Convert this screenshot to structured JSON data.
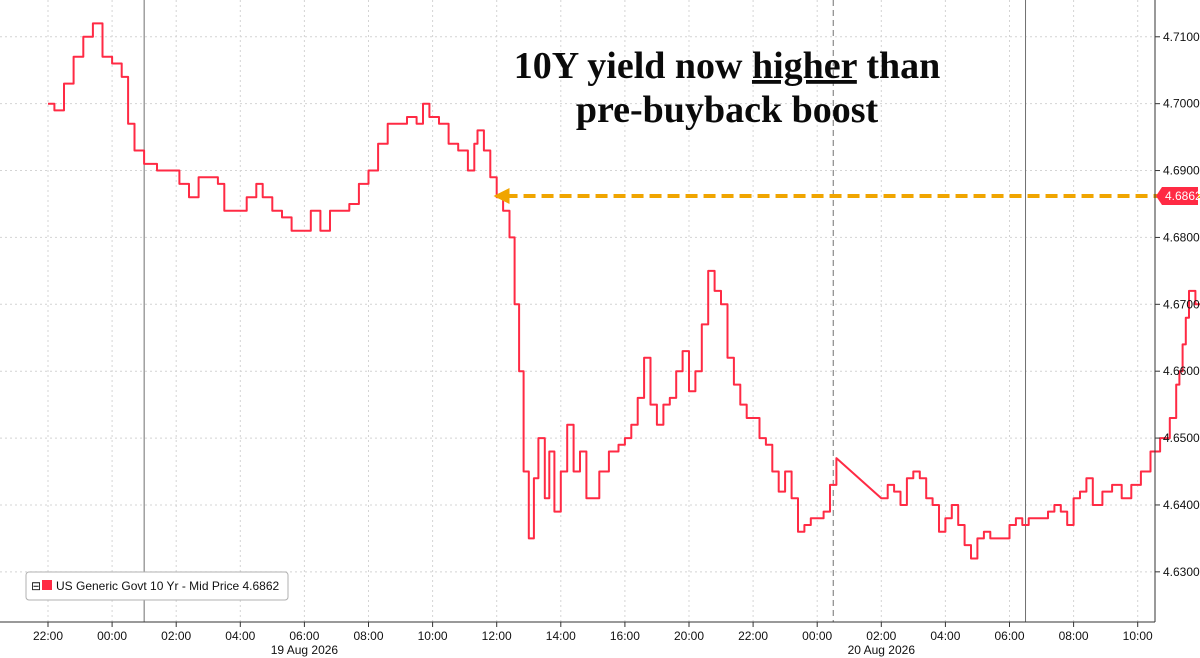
{
  "chart_data": {
    "type": "line",
    "title_lines": [
      [
        {
          "text": "10Y yield now ",
          "underline": false
        },
        {
          "text": "higher",
          "underline": true
        },
        {
          "text": " than",
          "underline": false
        }
      ],
      [
        {
          "text": "pre-buyback boost",
          "underline": false
        }
      ]
    ],
    "x_ticks": [
      "22:00",
      "00:00",
      "02:00",
      "04:00",
      "06:00",
      "08:00",
      "10:00",
      "12:00",
      "14:00",
      "16:00",
      "20:00",
      "22:00",
      "00:00",
      "02:00",
      "04:00",
      "06:00",
      "08:00",
      "10:00"
    ],
    "date_labels": [
      {
        "label": "19 Aug 2026",
        "tick_index": 4
      },
      {
        "label": "20 Aug 2026",
        "tick_index": 13
      }
    ],
    "y_ticks": [
      "4.6300",
      "4.6400",
      "4.6500",
      "4.6600",
      "4.6700",
      "4.6800",
      "4.6900",
      "4.7000",
      "4.7100"
    ],
    "ylim": [
      4.6225,
      4.7155
    ],
    "series": [
      {
        "name": "US Generic Govt 10 Yr - Mid Price 4.6862",
        "color": "#ff2a44",
        "points": [
          [
            0.0,
            4.7
          ],
          [
            0.1,
            4.699
          ],
          [
            0.25,
            4.703
          ],
          [
            0.4,
            4.707
          ],
          [
            0.55,
            4.71
          ],
          [
            0.7,
            4.712
          ],
          [
            0.85,
            4.707
          ],
          [
            1.0,
            4.706
          ],
          [
            1.15,
            4.704
          ],
          [
            1.25,
            4.697
          ],
          [
            1.35,
            4.693
          ],
          [
            1.5,
            4.691
          ],
          [
            1.7,
            4.69
          ],
          [
            1.9,
            4.69
          ],
          [
            2.05,
            4.688
          ],
          [
            2.2,
            4.686
          ],
          [
            2.35,
            4.689
          ],
          [
            2.5,
            4.689
          ],
          [
            2.65,
            4.688
          ],
          [
            2.75,
            4.684
          ],
          [
            2.9,
            4.684
          ],
          [
            3.1,
            4.686
          ],
          [
            3.25,
            4.688
          ],
          [
            3.35,
            4.686
          ],
          [
            3.5,
            4.684
          ],
          [
            3.65,
            4.683
          ],
          [
            3.8,
            4.681
          ],
          [
            3.95,
            4.681
          ],
          [
            4.1,
            4.684
          ],
          [
            4.25,
            4.681
          ],
          [
            4.4,
            4.684
          ],
          [
            4.55,
            4.684
          ],
          [
            4.7,
            4.685
          ],
          [
            4.85,
            4.688
          ],
          [
            5.0,
            4.69
          ],
          [
            5.15,
            4.694
          ],
          [
            5.3,
            4.697
          ],
          [
            5.45,
            4.697
          ],
          [
            5.6,
            4.698
          ],
          [
            5.75,
            4.697
          ],
          [
            5.85,
            4.7
          ],
          [
            5.95,
            4.698
          ],
          [
            6.1,
            4.697
          ],
          [
            6.25,
            4.694
          ],
          [
            6.4,
            4.693
          ],
          [
            6.55,
            4.69
          ],
          [
            6.65,
            4.694
          ],
          [
            6.7,
            4.696
          ],
          [
            6.8,
            4.693
          ],
          [
            6.9,
            4.689
          ],
          [
            7.0,
            4.686
          ],
          [
            7.1,
            4.684
          ],
          [
            7.2,
            4.68
          ],
          [
            7.28,
            4.67
          ],
          [
            7.35,
            4.66
          ],
          [
            7.42,
            4.645
          ],
          [
            7.5,
            4.635
          ],
          [
            7.58,
            4.644
          ],
          [
            7.65,
            4.65
          ],
          [
            7.75,
            4.641
          ],
          [
            7.82,
            4.648
          ],
          [
            7.9,
            4.639
          ],
          [
            8.0,
            4.645
          ],
          [
            8.1,
            4.652
          ],
          [
            8.2,
            4.645
          ],
          [
            8.3,
            4.648
          ],
          [
            8.4,
            4.641
          ],
          [
            8.5,
            4.641
          ],
          [
            8.6,
            4.645
          ],
          [
            8.75,
            4.648
          ],
          [
            8.9,
            4.649
          ],
          [
            9.0,
            4.65
          ],
          [
            9.1,
            4.652
          ],
          [
            9.2,
            4.656
          ],
          [
            9.3,
            4.662
          ],
          [
            9.4,
            4.655
          ],
          [
            9.5,
            4.652
          ],
          [
            9.6,
            4.655
          ],
          [
            9.7,
            4.656
          ],
          [
            9.8,
            4.66
          ],
          [
            9.9,
            4.663
          ],
          [
            10.0,
            4.657
          ],
          [
            10.1,
            4.66
          ],
          [
            10.2,
            4.667
          ],
          [
            10.3,
            4.675
          ],
          [
            10.4,
            4.672
          ],
          [
            10.5,
            4.67
          ],
          [
            10.6,
            4.662
          ],
          [
            10.7,
            4.658
          ],
          [
            10.8,
            4.655
          ],
          [
            10.9,
            4.653
          ],
          [
            11.0,
            4.653
          ],
          [
            11.1,
            4.65
          ],
          [
            11.2,
            4.649
          ],
          [
            11.3,
            4.645
          ],
          [
            11.4,
            4.642
          ],
          [
            11.5,
            4.645
          ],
          [
            11.6,
            4.641
          ],
          [
            11.7,
            4.636
          ],
          [
            11.8,
            4.637
          ],
          [
            11.9,
            4.638
          ],
          [
            12.0,
            4.638
          ],
          [
            12.1,
            4.639
          ],
          [
            12.2,
            4.643
          ],
          [
            12.3,
            4.647
          ],
          [
            13.0,
            4.641
          ],
          [
            13.1,
            4.643
          ],
          [
            13.2,
            4.642
          ],
          [
            13.3,
            4.64
          ],
          [
            13.4,
            4.644
          ],
          [
            13.5,
            4.645
          ],
          [
            13.6,
            4.644
          ],
          [
            13.7,
            4.641
          ],
          [
            13.8,
            4.64
          ],
          [
            13.9,
            4.636
          ],
          [
            14.0,
            4.638
          ],
          [
            14.1,
            4.64
          ],
          [
            14.2,
            4.637
          ],
          [
            14.3,
            4.634
          ],
          [
            14.4,
            4.632
          ],
          [
            14.5,
            4.635
          ],
          [
            14.6,
            4.636
          ],
          [
            14.7,
            4.635
          ],
          [
            14.85,
            4.635
          ],
          [
            15.0,
            4.637
          ],
          [
            15.1,
            4.638
          ],
          [
            15.2,
            4.637
          ],
          [
            15.3,
            4.638
          ],
          [
            15.45,
            4.638
          ],
          [
            15.6,
            4.639
          ],
          [
            15.7,
            4.64
          ],
          [
            15.8,
            4.639
          ],
          [
            15.9,
            4.637
          ],
          [
            16.0,
            4.641
          ],
          [
            16.1,
            4.642
          ],
          [
            16.2,
            4.644
          ],
          [
            16.3,
            4.64
          ],
          [
            16.45,
            4.642
          ],
          [
            16.6,
            4.643
          ],
          [
            16.75,
            4.641
          ],
          [
            16.9,
            4.643
          ],
          [
            17.05,
            4.645
          ],
          [
            17.2,
            4.648
          ],
          [
            17.35,
            4.65
          ],
          [
            17.5,
            4.653
          ],
          [
            17.6,
            4.658
          ],
          [
            17.65,
            4.66
          ],
          [
            17.7,
            4.664
          ],
          [
            17.75,
            4.668
          ],
          [
            17.8,
            4.672
          ],
          [
            17.9,
            4.67
          ],
          [
            18.05,
            4.671
          ],
          [
            18.2,
            4.67
          ],
          [
            18.35,
            4.67
          ],
          [
            18.45,
            4.669
          ],
          [
            18.55,
            4.668
          ],
          [
            18.65,
            4.667
          ],
          [
            18.75,
            4.665
          ],
          [
            18.85,
            4.666
          ],
          [
            18.95,
            4.67
          ],
          [
            19.05,
            4.673
          ],
          [
            19.15,
            4.676
          ],
          [
            19.25,
            4.679
          ],
          [
            19.35,
            4.684
          ],
          [
            19.42,
            4.6862
          ]
        ]
      }
    ],
    "annotations": [
      {
        "type": "arrow",
        "from": [
          19.4,
          4.6862
        ],
        "to": [
          6.95,
          4.6862
        ],
        "color": "#f0a500"
      }
    ],
    "vertical_markers": [
      {
        "x": 1.5,
        "style": "solid"
      },
      {
        "x": 12.25,
        "style": "dashed"
      },
      {
        "x": 15.25,
        "style": "solid"
      }
    ],
    "last_value": {
      "label": "4.6862",
      "value": 4.6862,
      "color": "#ff2a44"
    },
    "grid": true,
    "legend": {
      "position": "bottom-left",
      "text": "US Generic Govt 10 Yr - Mid Price 4.6862",
      "prefix": "⊟"
    }
  }
}
